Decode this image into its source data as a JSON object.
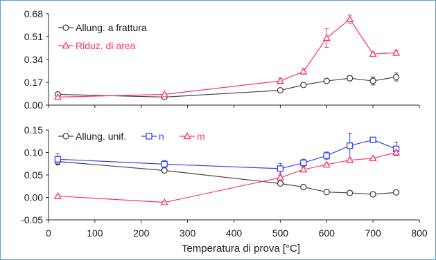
{
  "chart_data": [
    {
      "type": "line",
      "title": "",
      "xlabel": "Temperatura di prova [°C]",
      "ylabel": "",
      "xlim": [
        0,
        800
      ],
      "ylim": [
        0,
        0.68
      ],
      "yticks": [
        "0.00",
        "0.17",
        "0.34",
        "0.51",
        "0.68"
      ],
      "grid": false,
      "legend": "top-left",
      "series": [
        {
          "name": "Allung. a frattura",
          "color": "#444444",
          "marker": "circle",
          "x": [
            20,
            250,
            500,
            550,
            600,
            650,
            700,
            750
          ],
          "y": [
            0.08,
            0.06,
            0.11,
            0.15,
            0.18,
            0.2,
            0.18,
            0.21
          ],
          "err": [
            0.01,
            0.008,
            0.01,
            0.01,
            0.01,
            0.02,
            0.03,
            0.03
          ]
        },
        {
          "name": "Riduz. di area",
          "color": "#ff3366",
          "marker": "triangle",
          "x": [
            20,
            250,
            500,
            550,
            600,
            650,
            700,
            750
          ],
          "y": [
            0.06,
            0.08,
            0.18,
            0.25,
            0.5,
            0.64,
            0.38,
            0.39
          ],
          "err": [
            0.005,
            0.008,
            0.02,
            0.02,
            0.07,
            0.03,
            0.015,
            0.02
          ]
        }
      ]
    },
    {
      "type": "line",
      "title": "",
      "xlabel": "Temperatura di prova [°C]",
      "ylabel": "",
      "xlim": [
        0,
        800
      ],
      "ylim": [
        -0.05,
        0.15
      ],
      "xticks": [
        "0",
        "100",
        "200",
        "300",
        "400",
        "500",
        "600",
        "700",
        "800"
      ],
      "yticks": [
        "-0.05",
        "0.00",
        "0.05",
        "0.10",
        "0.15"
      ],
      "grid": false,
      "legend": "top-left",
      "series": [
        {
          "name": "Allung. unif.",
          "color": "#444444",
          "marker": "circle",
          "x": [
            20,
            250,
            500,
            550,
            600,
            650,
            700,
            750
          ],
          "y": [
            0.08,
            0.06,
            0.031,
            0.023,
            0.012,
            0.01,
            0.007,
            0.011
          ],
          "err": [
            0.008,
            0.004,
            0.004,
            0.003,
            0.002,
            0.002,
            0.002,
            0.002
          ]
        },
        {
          "name": "n",
          "color": "#3344ee",
          "marker": "square",
          "x": [
            20,
            250,
            500,
            550,
            600,
            650,
            700,
            750
          ],
          "y": [
            0.085,
            0.074,
            0.064,
            0.077,
            0.093,
            0.115,
            0.128,
            0.108
          ],
          "err": [
            0.012,
            0.008,
            0.012,
            0.008,
            0.008,
            0.028,
            0.005,
            0.015
          ]
        },
        {
          "name": "m",
          "color": "#ff3366",
          "marker": "triangle",
          "x": [
            20,
            250,
            500,
            550,
            600,
            650,
            700,
            750
          ],
          "y": [
            0.003,
            -0.011,
            0.044,
            0.062,
            0.073,
            0.083,
            0.087,
            0.1
          ],
          "err": [
            0.002,
            0.002,
            0.005,
            0.004,
            0.003,
            0.004,
            0.003,
            0.004
          ]
        }
      ]
    }
  ]
}
